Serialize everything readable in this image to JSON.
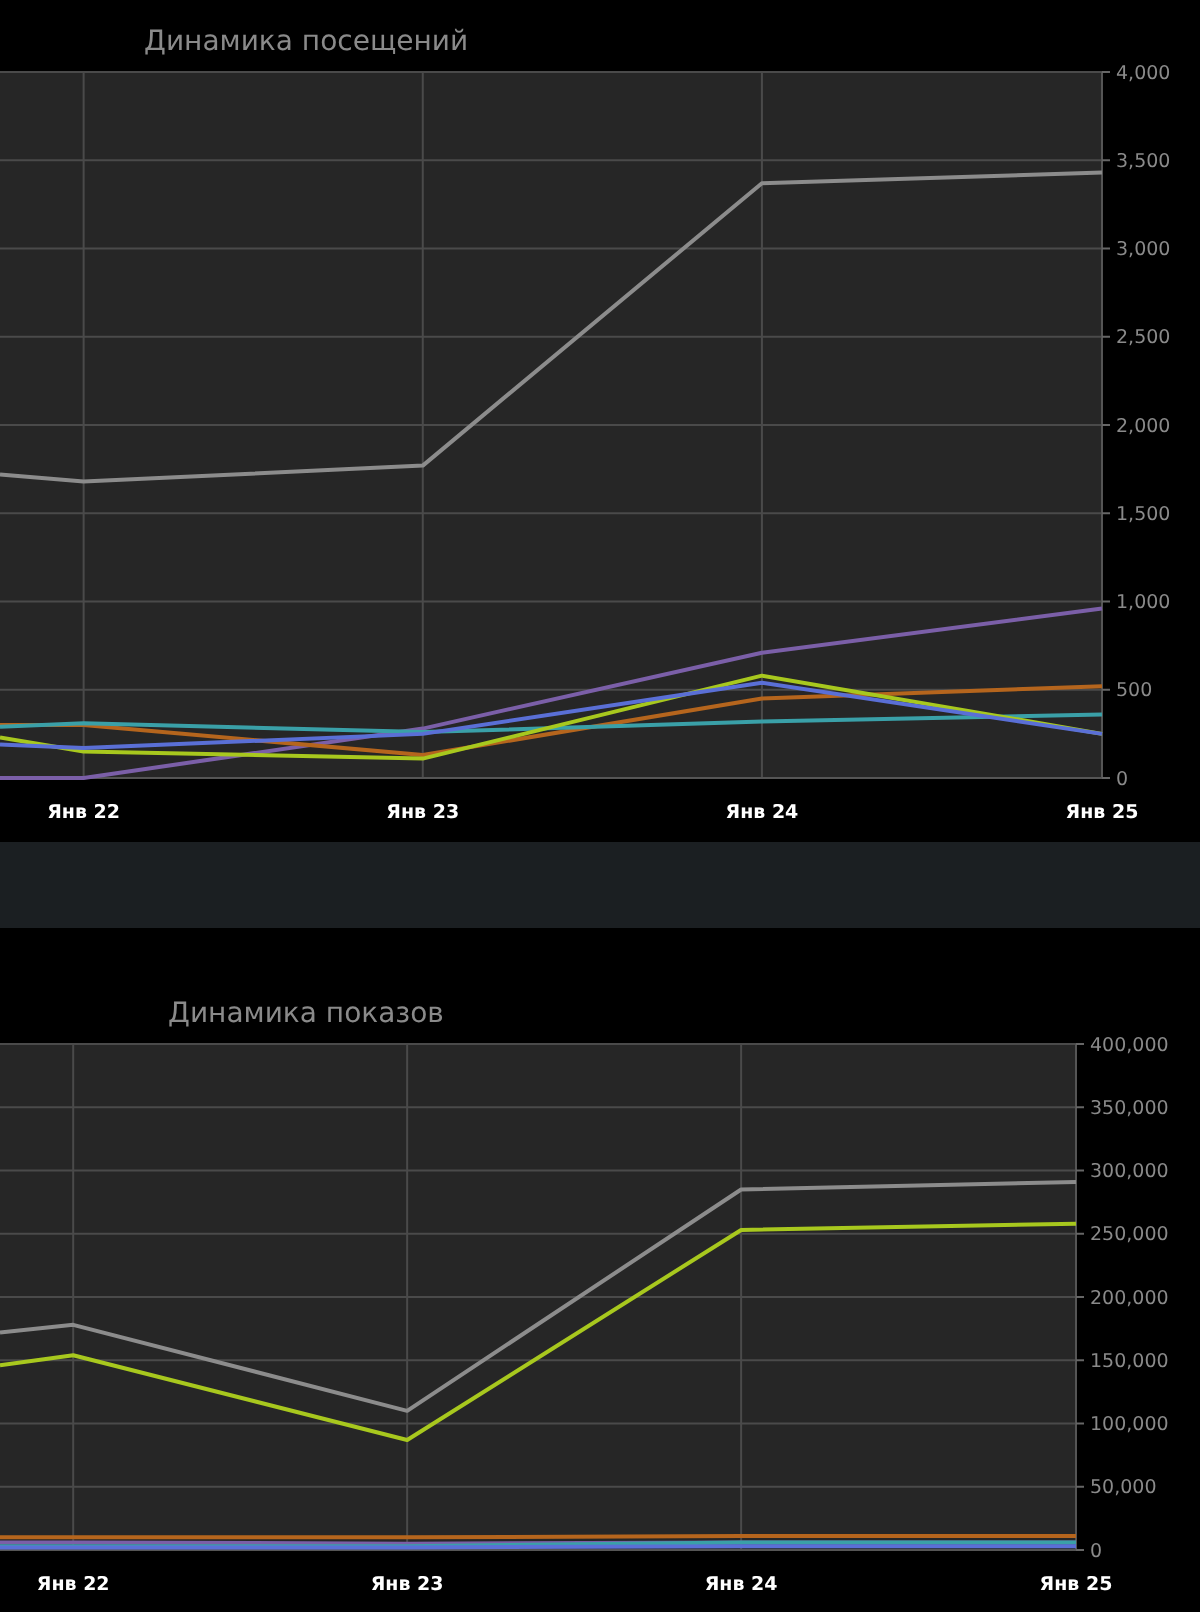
{
  "chart_data": [
    {
      "type": "line",
      "title": "Динамика посещений",
      "x": [
        "2021-10-03",
        "2022-01-01",
        "2023-01-01",
        "2024-01-01",
        "2025-01-01"
      ],
      "xlim": [
        "2021-10-03",
        "2025-01-01"
      ],
      "xticks": [
        {
          "value": "2022-01-01",
          "label": "Янв 22"
        },
        {
          "value": "2023-01-01",
          "label": "Янв 23"
        },
        {
          "value": "2024-01-01",
          "label": "Янв 24"
        },
        {
          "value": "2025-01-01",
          "label": "Янв 25"
        }
      ],
      "ylim": [
        0,
        4000
      ],
      "yticks": [
        {
          "value": 0,
          "label": "0"
        },
        {
          "value": 500,
          "label": "500"
        },
        {
          "value": 1000,
          "label": "1,000"
        },
        {
          "value": 1500,
          "label": "1,500"
        },
        {
          "value": 2000,
          "label": "2,000"
        },
        {
          "value": 2500,
          "label": "2,500"
        },
        {
          "value": 3000,
          "label": "3,000"
        },
        {
          "value": 3500,
          "label": "3,500"
        },
        {
          "value": 4000,
          "label": "4,000"
        }
      ],
      "grid": true,
      "marker": "none",
      "line_style": "solid",
      "series": [
        {
          "color": "#8c8c8c",
          "values": [
            1720,
            1680,
            1770,
            3370,
            3430
          ]
        },
        {
          "color": "#7b5fa8",
          "values": [
            0,
            0,
            280,
            710,
            960
          ]
        },
        {
          "color": "#b5651d",
          "values": [
            300,
            300,
            130,
            450,
            520
          ]
        },
        {
          "color": "#3aa0a8",
          "values": [
            290,
            310,
            260,
            320,
            360
          ]
        },
        {
          "color": "#a8c81e",
          "values": [
            230,
            150,
            110,
            580,
            250
          ]
        },
        {
          "color": "#5a6fd6",
          "values": [
            190,
            170,
            250,
            540,
            250
          ]
        }
      ]
    },
    {
      "type": "line",
      "title": "Динамика показов",
      "x": [
        "2021-10-13",
        "2022-01-01",
        "2023-01-01",
        "2024-01-01",
        "2025-01-01"
      ],
      "xlim": [
        "2021-10-13",
        "2025-01-01"
      ],
      "xticks": [
        {
          "value": "2022-01-01",
          "label": "Янв 22"
        },
        {
          "value": "2023-01-01",
          "label": "Янв 23"
        },
        {
          "value": "2024-01-01",
          "label": "Янв 24"
        },
        {
          "value": "2025-01-01",
          "label": "Янв 25"
        }
      ],
      "ylim": [
        0,
        400000
      ],
      "yticks": [
        {
          "value": 0,
          "label": "0"
        },
        {
          "value": 50000,
          "label": "50,000"
        },
        {
          "value": 100000,
          "label": "100,000"
        },
        {
          "value": 150000,
          "label": "150,000"
        },
        {
          "value": 200000,
          "label": "200,000"
        },
        {
          "value": 250000,
          "label": "250,000"
        },
        {
          "value": 300000,
          "label": "300,000"
        },
        {
          "value": 350000,
          "label": "350,000"
        },
        {
          "value": 400000,
          "label": "400,000"
        }
      ],
      "grid": true,
      "marker": "none",
      "line_style": "solid",
      "series": [
        {
          "color": "#8c8c8c",
          "values": [
            172000,
            178000,
            110000,
            285000,
            291000
          ]
        },
        {
          "color": "#a8c81e",
          "values": [
            146000,
            154000,
            87000,
            253000,
            258000
          ]
        },
        {
          "color": "#b5651d",
          "values": [
            10000,
            10000,
            10000,
            11000,
            11000
          ]
        },
        {
          "color": "#7b5fa8",
          "values": [
            6000,
            6000,
            5000,
            6000,
            6000
          ]
        },
        {
          "color": "#3aa0a8",
          "values": [
            3000,
            3000,
            3000,
            6000,
            6000
          ]
        },
        {
          "color": "#5a6fd6",
          "values": [
            2000,
            2000,
            2000,
            3000,
            3000
          ]
        }
      ]
    }
  ]
}
